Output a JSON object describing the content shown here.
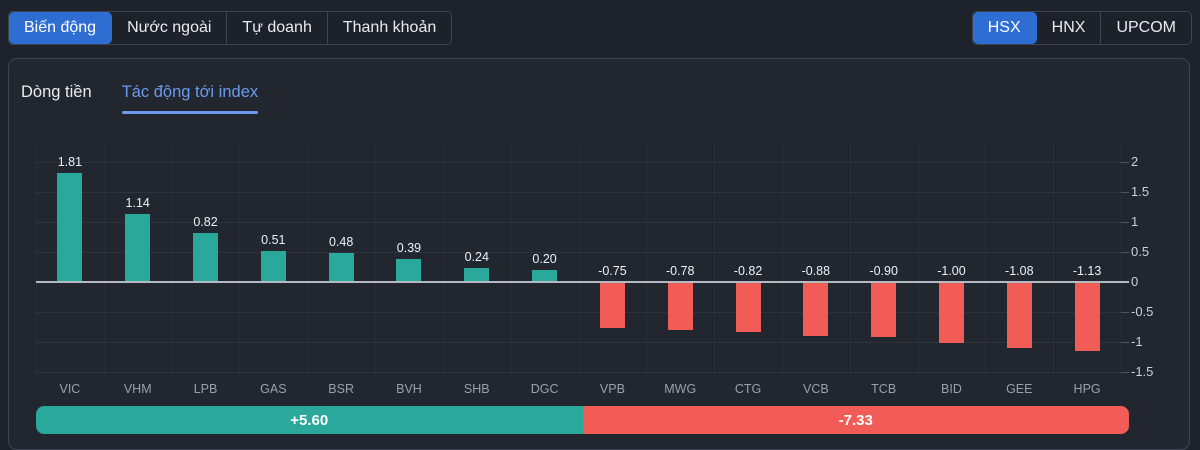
{
  "header": {
    "view_tabs": {
      "items": [
        "Biến động",
        "Nước ngoài",
        "Tự doanh",
        "Thanh khoản"
      ],
      "active_index": 0
    },
    "exchange_tabs": {
      "items": [
        "HSX",
        "HNX",
        "UPCOM"
      ],
      "active_index": 0
    }
  },
  "panel": {
    "tabs": {
      "items": [
        "Dòng tiền",
        "Tác động tới index"
      ],
      "active_index": 1
    }
  },
  "chart_data": {
    "type": "bar",
    "title": "Tác động tới index",
    "categories": [
      "VIC",
      "VHM",
      "LPB",
      "GAS",
      "BSR",
      "BVH",
      "SHB",
      "DGC",
      "VPB",
      "MWG",
      "CTG",
      "VCB",
      "TCB",
      "BID",
      "GEE",
      "HPG"
    ],
    "values": [
      1.81,
      1.14,
      0.82,
      0.51,
      0.48,
      0.39,
      0.24,
      0.2,
      -0.75,
      -0.78,
      -0.82,
      -0.88,
      -0.9,
      -1.0,
      -1.08,
      -1.13
    ],
    "right_axis_ticks": [
      2,
      1.5,
      1,
      0.5,
      0,
      -0.5,
      -1,
      -1.5
    ],
    "ylim": [
      -1.5,
      2
    ],
    "grid": true,
    "legend_position": "none",
    "axis_side": "right",
    "positive_color": "#2aa89c",
    "negative_color": "#f25c57"
  },
  "summary": {
    "positive_label": "+5.60",
    "negative_label": "-7.33",
    "positive_value": 5.6,
    "negative_value": 7.33
  },
  "colors": {
    "accent_blue": "#2e6ed3",
    "tab_active_text": "#6b9aec",
    "positive": "#2aa89c",
    "negative": "#f25c57",
    "page_bg": "#1e232b",
    "panel_bg": "#22272f",
    "border": "#3e4450",
    "zero_line": "#b4bac3"
  }
}
